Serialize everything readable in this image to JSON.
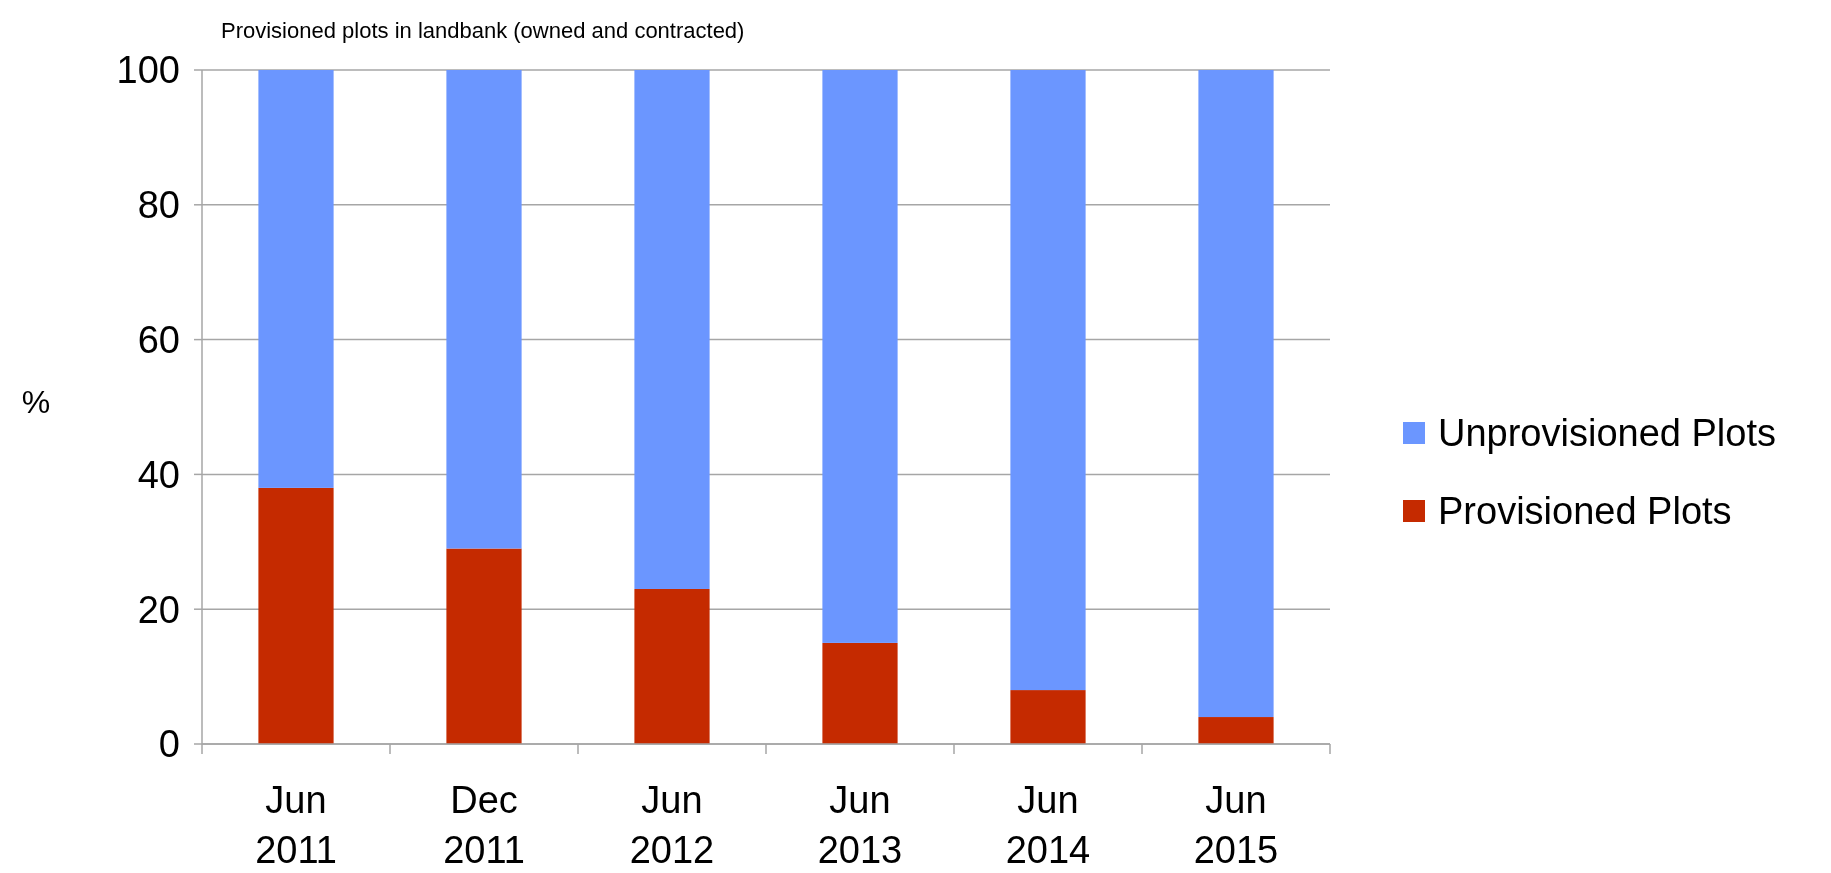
{
  "chart_data": {
    "type": "bar",
    "title": "Provisioned plots in landbank (owned and contracted)",
    "ylabel": "%",
    "categories": [
      "Jun 2011",
      "Dec 2011",
      "Jun 2012",
      "Jun 2013",
      "Jun 2014",
      "Jun 2015"
    ],
    "stacked": true,
    "series": [
      {
        "name": "Provisioned Plots",
        "color": "#c52a00",
        "values": [
          38,
          29,
          23,
          15,
          8,
          4
        ]
      },
      {
        "name": "Unprovisioned Plots",
        "color": "#6b96ff",
        "values": [
          62,
          71,
          77,
          85,
          92,
          96
        ]
      }
    ],
    "ylim": [
      0,
      100
    ],
    "yticks": [
      0,
      20,
      40,
      60,
      80,
      100
    ],
    "grid": "y",
    "legend": "right"
  }
}
